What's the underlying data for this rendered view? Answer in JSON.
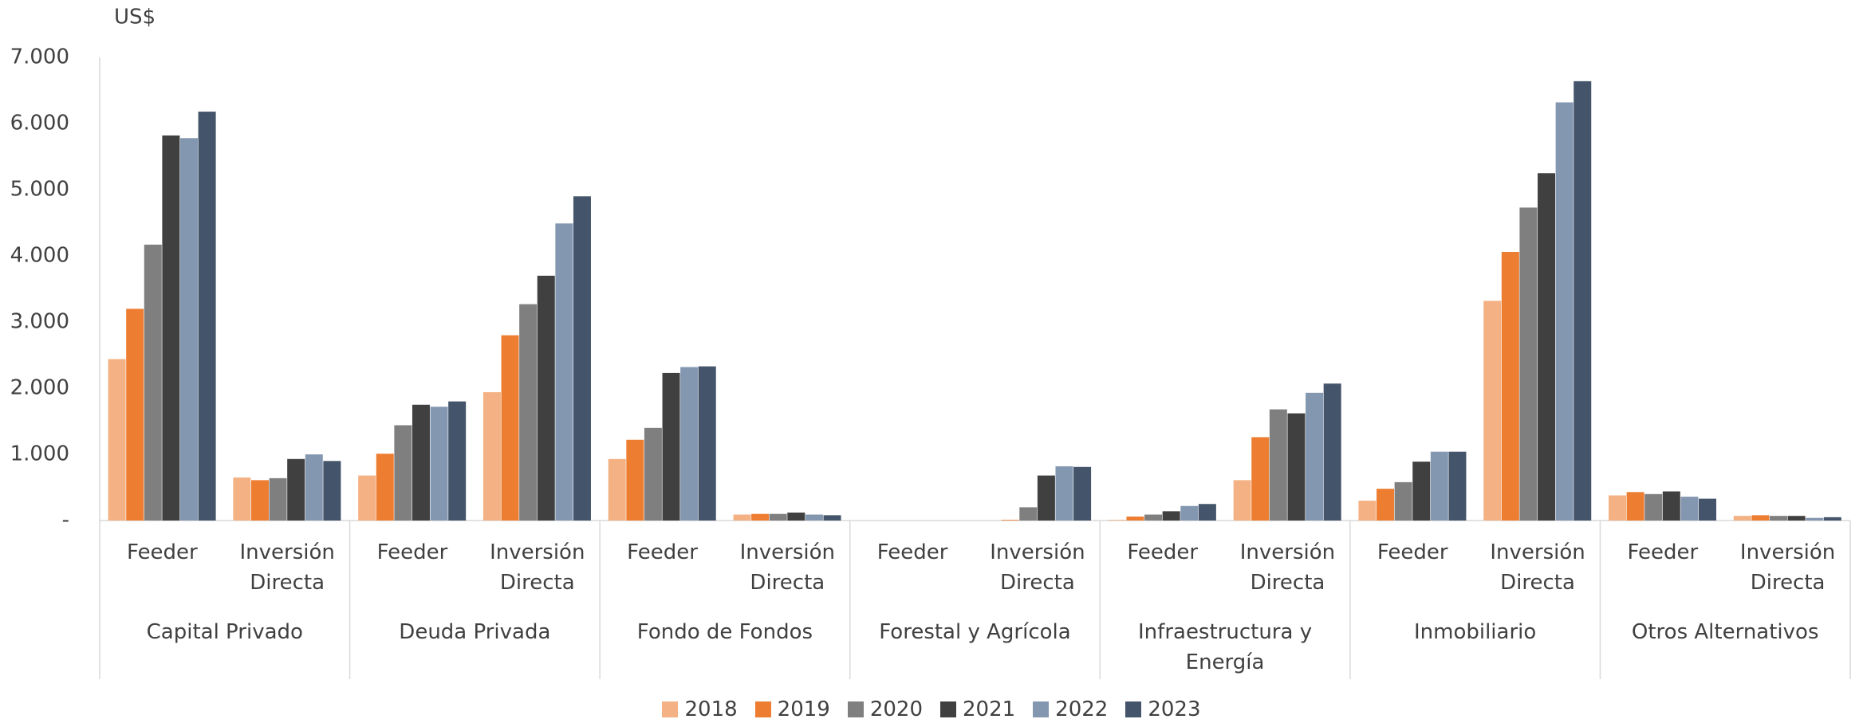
{
  "chart_data": {
    "type": "grouped_bar",
    "y_unit_label": "US$",
    "groups": [
      "Capital Privado",
      "Deuda Privada",
      "Fondo de Fondos",
      "Forestal y Agrícola",
      "Infraestructura y Energía",
      "Inmobiliario",
      "Otros Alternativos"
    ],
    "categories": [
      "Feeder",
      "Inversión Directa",
      "Feeder",
      "Inversión Directa",
      "Feeder",
      "Inversión Directa",
      "Feeder",
      "Inversión Directa",
      "Feeder",
      "Inversión Directa",
      "Feeder",
      "Inversión Directa",
      "Feeder",
      "Inversión Directa"
    ],
    "series": [
      {
        "name": "2018",
        "color": "#f4b183",
        "values": [
          2440,
          650,
          680,
          1940,
          930,
          90,
          0,
          0,
          10,
          610,
          300,
          3320,
          380,
          70
        ]
      },
      {
        "name": "2019",
        "color": "#ed7d31",
        "values": [
          3200,
          610,
          1010,
          2800,
          1220,
          100,
          0,
          10,
          60,
          1260,
          480,
          4060,
          430,
          80
        ]
      },
      {
        "name": "2020",
        "color": "#7f7f7f",
        "values": [
          4170,
          640,
          1440,
          3270,
          1400,
          100,
          0,
          200,
          90,
          1680,
          580,
          4730,
          400,
          70
        ]
      },
      {
        "name": "2021",
        "color": "#404040",
        "values": [
          5820,
          930,
          1750,
          3700,
          2230,
          120,
          0,
          680,
          140,
          1620,
          890,
          5250,
          440,
          70
        ]
      },
      {
        "name": "2022",
        "color": "#8497b0",
        "values": [
          5780,
          1000,
          1720,
          4490,
          2320,
          90,
          0,
          820,
          220,
          1930,
          1040,
          6320,
          360,
          40
        ]
      },
      {
        "name": "2023",
        "color": "#44546a",
        "values": [
          6180,
          900,
          1800,
          4900,
          2330,
          80,
          0,
          810,
          250,
          2070,
          1040,
          6640,
          330,
          50
        ]
      }
    ],
    "ylim": [
      0,
      7000
    ],
    "yticks": [
      {
        "value": 0,
        "label": "-"
      },
      {
        "value": 1000,
        "label": "1.000"
      },
      {
        "value": 2000,
        "label": "2.000"
      },
      {
        "value": 3000,
        "label": "3.000"
      },
      {
        "value": 4000,
        "label": "4.000"
      },
      {
        "value": 5000,
        "label": "5.000"
      },
      {
        "value": 6000,
        "label": "6.000"
      },
      {
        "value": 7000,
        "label": "7.000"
      }
    ],
    "grid": false,
    "legend": "bottom"
  }
}
